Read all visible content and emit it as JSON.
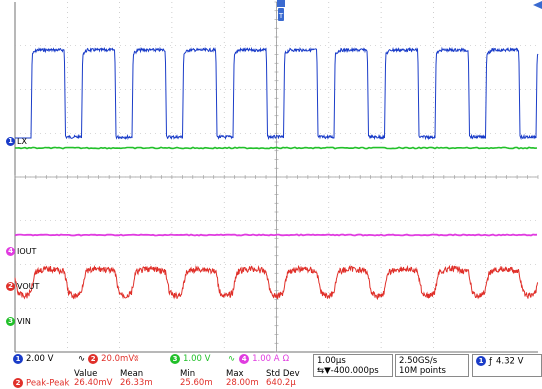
{
  "channels": [
    {
      "id": "1",
      "label": "LX",
      "color": "#1a3cc8",
      "scale": "2.00 V",
      "coupling": ""
    },
    {
      "id": "2",
      "label": "VOUT",
      "color": "#e0302a",
      "scale": "20.0mV",
      "coupling": "∿"
    },
    {
      "id": "3",
      "label": "VIN",
      "color": "#22c02a",
      "scale": "1.00 V",
      "coupling": ""
    },
    {
      "id": "4",
      "label": "IOUT",
      "color": "#e03ce0",
      "scale": "1.00 A",
      "coupling": "Ω"
    }
  ],
  "trigger_marker": "T",
  "timebase": {
    "div": "1.00µs",
    "position": "⇆▼-400.000ps"
  },
  "acquisition": {
    "rate": "2.50GS/s",
    "points": "10M points"
  },
  "trigger": {
    "source": "1",
    "slope": "ƒ",
    "level": "4.32 V"
  },
  "measurement": {
    "headers": [
      "Value",
      "Mean",
      "Min",
      "Max",
      "Std Dev"
    ],
    "channel": "2",
    "name": "Peak-Peak",
    "values": [
      "26.40mV",
      "26.33m",
      "25.60m",
      "28.00m",
      "640.2µ"
    ]
  },
  "colors": {
    "grid": "#b0b0b0",
    "grid_center": "#9a9a9a",
    "status_border": "#8a8a8a"
  }
}
